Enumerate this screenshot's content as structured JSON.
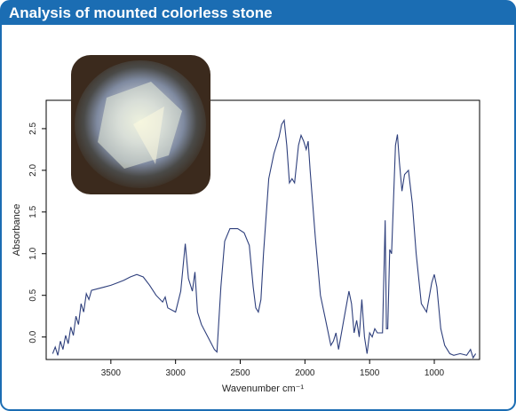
{
  "chart_data": {
    "type": "line",
    "title": "Analysis of mounted colorless stone",
    "x_label": "Wavenumber cm⁻¹",
    "y_label": "Absorbance",
    "color": "#2e3f7c",
    "x": [
      3950,
      3930,
      3910,
      3890,
      3870,
      3850,
      3830,
      3810,
      3790,
      3770,
      3750,
      3730,
      3710,
      3690,
      3670,
      3650,
      3600,
      3550,
      3500,
      3450,
      3400,
      3350,
      3300,
      3250,
      3200,
      3150,
      3100,
      3080,
      3060,
      3000,
      2960,
      2925,
      2900,
      2870,
      2850,
      2830,
      2800,
      2750,
      2700,
      2680,
      2650,
      2620,
      2580,
      2520,
      2470,
      2430,
      2400,
      2380,
      2360,
      2340,
      2320,
      2280,
      2240,
      2200,
      2180,
      2160,
      2140,
      2120,
      2100,
      2080,
      2050,
      2030,
      2010,
      1990,
      1975,
      1960,
      1920,
      1880,
      1840,
      1800,
      1780,
      1760,
      1740,
      1700,
      1660,
      1640,
      1620,
      1600,
      1580,
      1560,
      1540,
      1520,
      1500,
      1480,
      1460,
      1440,
      1400,
      1380,
      1370,
      1360,
      1345,
      1330,
      1300,
      1285,
      1270,
      1250,
      1230,
      1200,
      1170,
      1140,
      1100,
      1060,
      1020,
      1000,
      980,
      950,
      920,
      880,
      850,
      800,
      750,
      720,
      700,
      680
    ],
    "values": [
      -0.2,
      -0.12,
      -0.22,
      -0.05,
      -0.15,
      0.02,
      -0.08,
      0.12,
      0.02,
      0.25,
      0.15,
      0.4,
      0.3,
      0.52,
      0.45,
      0.56,
      0.58,
      0.6,
      0.62,
      0.65,
      0.68,
      0.72,
      0.75,
      0.72,
      0.62,
      0.5,
      0.42,
      0.48,
      0.35,
      0.3,
      0.55,
      1.12,
      0.7,
      0.55,
      0.78,
      0.3,
      0.15,
      0.0,
      -0.15,
      -0.18,
      0.6,
      1.15,
      1.3,
      1.3,
      1.25,
      1.1,
      0.6,
      0.35,
      0.3,
      0.45,
      1.0,
      1.9,
      2.2,
      2.4,
      2.55,
      2.6,
      2.3,
      1.85,
      1.9,
      1.85,
      2.3,
      2.42,
      2.35,
      2.25,
      2.35,
      2.0,
      1.2,
      0.5,
      0.2,
      -0.1,
      -0.05,
      0.05,
      -0.15,
      0.2,
      0.55,
      0.4,
      0.05,
      0.2,
      0.0,
      0.45,
      0.0,
      -0.2,
      0.05,
      0.0,
      0.1,
      0.05,
      0.05,
      1.4,
      0.1,
      0.1,
      1.05,
      1.0,
      2.3,
      2.43,
      2.1,
      1.75,
      1.95,
      2.0,
      1.6,
      1.0,
      0.4,
      0.3,
      0.65,
      0.75,
      0.6,
      0.1,
      -0.1,
      -0.2,
      -0.22,
      -0.2,
      -0.22,
      -0.15,
      -0.25,
      -0.2
    ],
    "xlim": [
      4000,
      650
    ],
    "xticks": [
      3500,
      3000,
      2500,
      2000,
      1500,
      1000
    ],
    "ylim": [
      -0.27,
      2.84
    ],
    "yticks": [
      {
        "value": 0,
        "label": "0.0"
      },
      0.5,
      {
        "value": 1,
        "label": "1.0"
      },
      1.5,
      {
        "value": 2,
        "label": "2.0"
      },
      2.5
    ]
  }
}
